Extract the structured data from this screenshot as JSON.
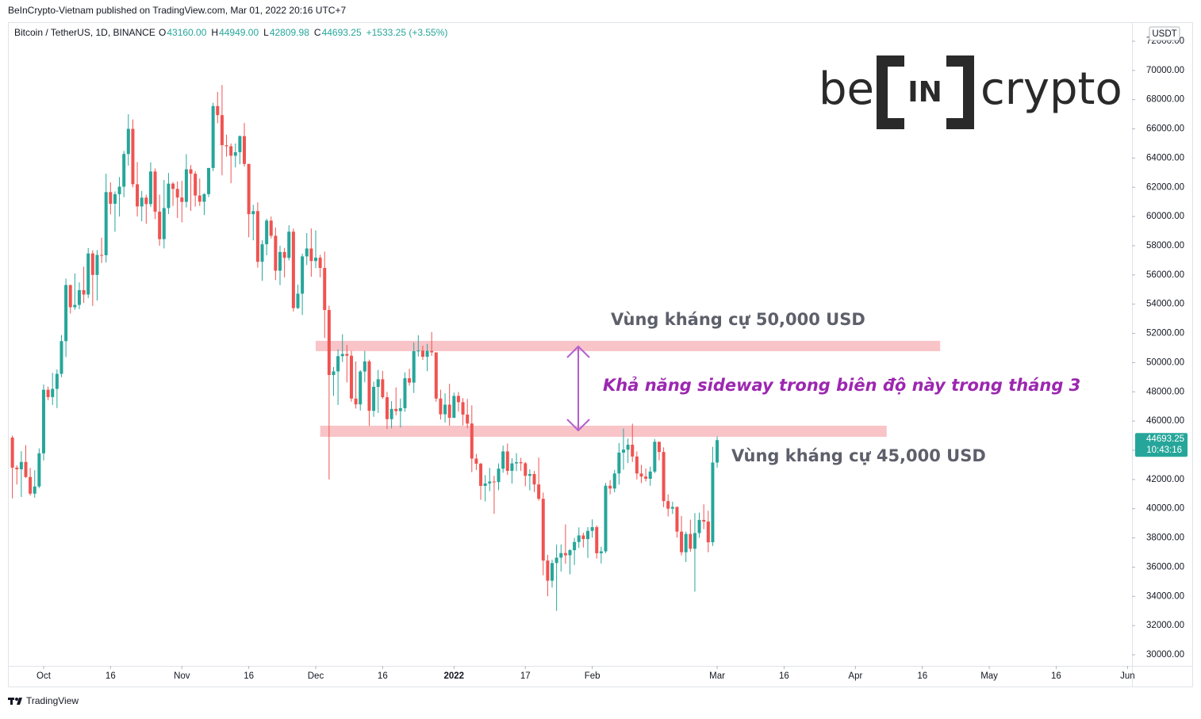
{
  "header": {
    "published": "BeInCrypto-Vietnam published on TradingView.com, Mar 01, 2022 20:16 UTC+7",
    "footer": "TradingView"
  },
  "logo": {
    "left": "be",
    "middle": "IN",
    "right": "crypto"
  },
  "chart_data": {
    "type": "candlestick",
    "symbol": "Bitcoin / TetherUS, 1D, BINANCE",
    "ohlc_legend": [
      {
        "key": "O",
        "value": "43160.00"
      },
      {
        "key": "H",
        "value": "44949.00"
      },
      {
        "key": "L",
        "value": "42809.98"
      },
      {
        "key": "C",
        "value": "44693.25"
      }
    ],
    "change": "+1533.25 (+3.55%)",
    "currency": "USDT",
    "up_color": "#26a69a",
    "down_color": "#ef5350",
    "grid": false,
    "x": [
      "2021-09-24",
      "2021-09-25",
      "2021-09-26",
      "2021-09-27",
      "2021-09-28",
      "2021-09-29",
      "2021-09-30",
      "2021-10-01",
      "2021-10-02",
      "2021-10-03",
      "2021-10-04",
      "2021-10-05",
      "2021-10-06",
      "2021-10-07",
      "2021-10-08",
      "2021-10-09",
      "2021-10-10",
      "2021-10-11",
      "2021-10-12",
      "2021-10-13",
      "2021-10-14",
      "2021-10-15",
      "2021-10-16",
      "2021-10-17",
      "2021-10-18",
      "2021-10-19",
      "2021-10-20",
      "2021-10-21",
      "2021-10-22",
      "2021-10-23",
      "2021-10-24",
      "2021-10-25",
      "2021-10-26",
      "2021-10-27",
      "2021-10-28",
      "2021-10-29",
      "2021-10-30",
      "2021-10-31",
      "2021-11-01",
      "2021-11-02",
      "2021-11-03",
      "2021-11-04",
      "2021-11-05",
      "2021-11-06",
      "2021-11-07",
      "2021-11-08",
      "2021-11-09",
      "2021-11-10",
      "2021-11-11",
      "2021-11-12",
      "2021-11-13",
      "2021-11-14",
      "2021-11-15",
      "2021-11-16",
      "2021-11-17",
      "2021-11-18",
      "2021-11-19",
      "2021-11-20",
      "2021-11-21",
      "2021-11-22",
      "2021-11-23",
      "2021-11-24",
      "2021-11-25",
      "2021-11-26",
      "2021-11-27",
      "2021-11-28",
      "2021-11-29",
      "2021-11-30",
      "2021-12-01",
      "2021-12-02",
      "2021-12-03",
      "2021-12-04",
      "2021-12-05",
      "2021-12-06",
      "2021-12-07",
      "2021-12-08",
      "2021-12-09",
      "2021-12-10",
      "2021-12-11",
      "2021-12-12",
      "2021-12-13",
      "2021-12-14",
      "2021-12-15",
      "2021-12-16",
      "2021-12-17",
      "2021-12-18",
      "2021-12-19",
      "2021-12-20",
      "2021-12-21",
      "2021-12-22",
      "2021-12-23",
      "2021-12-24",
      "2021-12-25",
      "2021-12-26",
      "2021-12-27",
      "2021-12-28",
      "2021-12-29",
      "2021-12-30",
      "2021-12-31",
      "2022-01-01",
      "2022-01-02",
      "2022-01-03",
      "2022-01-04",
      "2022-01-05",
      "2022-01-06",
      "2022-01-07",
      "2022-01-08",
      "2022-01-09",
      "2022-01-10",
      "2022-01-11",
      "2022-01-12",
      "2022-01-13",
      "2022-01-14",
      "2022-01-15",
      "2022-01-16",
      "2022-01-17",
      "2022-01-18",
      "2022-01-19",
      "2022-01-20",
      "2022-01-21",
      "2022-01-22",
      "2022-01-23",
      "2022-01-24",
      "2022-01-25",
      "2022-01-26",
      "2022-01-27",
      "2022-01-28",
      "2022-01-29",
      "2022-01-30",
      "2022-01-31",
      "2022-02-01",
      "2022-02-02",
      "2022-02-03",
      "2022-02-04",
      "2022-02-05",
      "2022-02-06",
      "2022-02-07",
      "2022-02-08",
      "2022-02-09",
      "2022-02-10",
      "2022-02-11",
      "2022-02-12",
      "2022-02-13",
      "2022-02-14",
      "2022-02-15",
      "2022-02-16",
      "2022-02-17",
      "2022-02-18",
      "2022-02-19",
      "2022-02-20",
      "2022-02-21",
      "2022-02-22",
      "2022-02-23",
      "2022-02-24",
      "2022-02-25",
      "2022-02-26",
      "2022-02-27",
      "2022-02-28",
      "2022-03-01"
    ],
    "open": [
      44870,
      42810,
      42700,
      43200,
      42170,
      41030,
      41520,
      43790,
      48140,
      47640,
      48200,
      49230,
      51470,
      55310,
      53790,
      53950,
      54960,
      54660,
      57470,
      56000,
      57370,
      57350,
      61670,
      60870,
      61530,
      62040,
      64280,
      66000,
      62210,
      60690,
      61290,
      60850,
      63080,
      60330,
      58450,
      60580,
      62250,
      61890,
      61300,
      61000,
      63230,
      62930,
      61440,
      61010,
      61530,
      63320,
      67560,
      66940,
      64880,
      64810,
      64160,
      64400,
      65500,
      63600,
      60160,
      60370,
      56900,
      58100,
      59720,
      58680,
      56290,
      57570,
      57170,
      58960,
      53730,
      54720,
      57270,
      57810,
      56950,
      57180,
      56480,
      53600,
      49150,
      49400,
      50440,
      50590,
      50470,
      47540,
      47140,
      49390,
      50080,
      46700,
      48340,
      48860,
      47630,
      46130,
      46830,
      46680,
      46880,
      48930,
      48630,
      50780,
      50820,
      50400,
      50800,
      50700,
      47540,
      46460,
      47120,
      46220,
      47720,
      47290,
      46440,
      45830,
      43430,
      43080,
      41560,
      41730,
      41860,
      41820,
      42740,
      43920,
      42590,
      43100,
      43180,
      43110,
      42250,
      42370,
      41660,
      40680,
      36450,
      35070,
      36280,
      36650,
      36960,
      36810,
      37160,
      37720,
      38170,
      37920,
      38480,
      38740,
      36950,
      37080,
      41570,
      41380,
      42410,
      43840,
      44040,
      44380,
      43570,
      42410,
      42200,
      42050,
      42540,
      44580,
      43880,
      40520,
      40000,
      40120,
      38430,
      37020,
      38270,
      37260,
      38330,
      39230,
      39120,
      37700,
      43160
    ],
    "high": [
      45000,
      42970,
      43940,
      44350,
      42790,
      42630,
      44130,
      48500,
      48360,
      49300,
      49530,
      51890,
      55750,
      55330,
      56100,
      55490,
      56560,
      57840,
      57680,
      57700,
      58550,
      62930,
      62340,
      61720,
      62700,
      64490,
      67000,
      66640,
      63730,
      61750,
      61490,
      63710,
      63290,
      61500,
      62500,
      62980,
      62360,
      62400,
      62440,
      64270,
      63520,
      63100,
      62600,
      61600,
      63330,
      67790,
      68530,
      69000,
      65600,
      65000,
      65000,
      65550,
      66400,
      63600,
      60800,
      60970,
      58370,
      59850,
      60000,
      59250,
      58000,
      57850,
      59400,
      59170,
      55330,
      57450,
      58870,
      59180,
      59050,
      57380,
      57600,
      53900,
      49700,
      50900,
      51940,
      51200,
      50800,
      50080,
      49480,
      50800,
      50200,
      48700,
      49500,
      49440,
      48000,
      47360,
      48300,
      47540,
      49330,
      49580,
      51380,
      51870,
      51160,
      51280,
      52090,
      50700,
      48140,
      47900,
      48550,
      47950,
      47990,
      47570,
      47510,
      47070,
      43750,
      43140,
      42300,
      42790,
      42250,
      43100,
      44320,
      44460,
      43450,
      43800,
      43480,
      43200,
      42690,
      42580,
      43500,
      41100,
      36840,
      36500,
      37550,
      37550,
      38920,
      37230,
      38000,
      38720,
      38360,
      38740,
      39270,
      38860,
      37390,
      41760,
      41950,
      42650,
      44500,
      45490,
      44800,
      45820,
      43920,
      43000,
      42760,
      42880,
      44770,
      44580,
      44200,
      40980,
      40480,
      40150,
      39500,
      38430,
      39250,
      39700,
      39730,
      40300,
      39860,
      44230,
      44949
    ],
    "low": [
      40700,
      41650,
      40800,
      42100,
      40900,
      40750,
      41410,
      43300,
      47430,
      47100,
      46890,
      49000,
      50380,
      53360,
      53620,
      53660,
      54080,
      54420,
      53880,
      54250,
      56820,
      56850,
      60150,
      58960,
      60000,
      61320,
      63480,
      62000,
      60000,
      59670,
      59500,
      60650,
      59820,
      58000,
      57820,
      60170,
      60720,
      59900,
      59600,
      60620,
      60380,
      60680,
      60720,
      60100,
      61330,
      63110,
      66380,
      62820,
      64100,
      62280,
      63360,
      63580,
      63420,
      58580,
      58370,
      56500,
      55600,
      57350,
      58500,
      55650,
      55300,
      55840,
      57000,
      53500,
      53670,
      53260,
      56680,
      55880,
      56460,
      55840,
      51680,
      42000,
      47730,
      47100,
      50040,
      48640,
      47320,
      46850,
      46720,
      48650,
      45670,
      46290,
      46550,
      47510,
      45450,
      45500,
      46400,
      45560,
      46630,
      48420,
      47920,
      50420,
      50180,
      49410,
      50460,
      47320,
      46100,
      45900,
      45680,
      46210,
      46650,
      45700,
      45500,
      42500,
      42650,
      40610,
      40500,
      41200,
      39650,
      41270,
      42460,
      42310,
      41720,
      42570,
      42590,
      41540,
      41250,
      41140,
      40550,
      35440,
      34010,
      34600,
      33000,
      35700,
      36230,
      35510,
      36150,
      37310,
      37350,
      36630,
      38020,
      36580,
      36250,
      36960,
      40990,
      41120,
      41650,
      42670,
      43120,
      43200,
      42000,
      41750,
      41870,
      41570,
      42430,
      43310,
      40100,
      39470,
      39640,
      38020,
      36800,
      36350,
      37040,
      34320,
      38010,
      38600,
      37020,
      37450,
      42809.98
    ],
    "close": [
      42810,
      42700,
      43200,
      42170,
      41030,
      41520,
      43790,
      48140,
      47640,
      48200,
      49230,
      51470,
      55310,
      53790,
      53950,
      54960,
      54660,
      57470,
      56000,
      57370,
      57350,
      61670,
      60870,
      61530,
      62040,
      64280,
      66000,
      62210,
      60690,
      61290,
      60850,
      63080,
      60330,
      58450,
      60580,
      62250,
      61890,
      61300,
      61000,
      63230,
      62930,
      61440,
      61010,
      61530,
      63320,
      67560,
      66940,
      64880,
      64810,
      64160,
      64400,
      65500,
      63600,
      60160,
      60370,
      56900,
      58100,
      59720,
      58680,
      56290,
      57570,
      57170,
      58960,
      53730,
      54720,
      57270,
      57810,
      56950,
      57180,
      56480,
      53600,
      49150,
      49400,
      50440,
      50590,
      50470,
      47540,
      47140,
      49390,
      50080,
      46700,
      48340,
      48860,
      47630,
      46130,
      46830,
      46680,
      46880,
      48930,
      48630,
      50780,
      50820,
      50400,
      50800,
      50700,
      47540,
      46460,
      47120,
      46220,
      47720,
      47290,
      46440,
      45830,
      43430,
      43080,
      41560,
      41730,
      41860,
      41820,
      42740,
      43920,
      42590,
      43100,
      43180,
      43110,
      42250,
      42370,
      41660,
      40680,
      36450,
      35070,
      36280,
      36650,
      36960,
      36810,
      37160,
      37720,
      38170,
      37920,
      38480,
      38740,
      36950,
      37080,
      41570,
      41380,
      42410,
      43840,
      44040,
      44380,
      43570,
      42410,
      42200,
      42050,
      42540,
      44580,
      43880,
      40520,
      40000,
      40120,
      38430,
      37020,
      38270,
      37260,
      38330,
      39230,
      39120,
      37700,
      43160,
      44693.25
    ],
    "xlim": [
      "2021-09-23",
      "2022-06-02"
    ],
    "xticks": [
      {
        "value": "2021-10-01",
        "label": "Oct"
      },
      {
        "value": "2021-10-16",
        "label": "16"
      },
      {
        "value": "2021-11-01",
        "label": "Nov"
      },
      {
        "value": "2021-11-16",
        "label": "16"
      },
      {
        "value": "2021-12-01",
        "label": "Dec"
      },
      {
        "value": "2021-12-16",
        "label": "16"
      },
      {
        "value": "2022-01-01",
        "label": "2022"
      },
      {
        "value": "2022-01-17",
        "label": "17"
      },
      {
        "value": "2022-02-01",
        "label": "Feb"
      },
      {
        "value": "2022-03-01",
        "label": "Mar"
      },
      {
        "value": "2022-03-16",
        "label": "16"
      },
      {
        "value": "2022-04-01",
        "label": "Apr"
      },
      {
        "value": "2022-04-16",
        "label": "16"
      },
      {
        "value": "2022-05-01",
        "label": "May"
      },
      {
        "value": "2022-05-16",
        "label": "16"
      },
      {
        "value": "2022-06-01",
        "label": "Jun"
      }
    ],
    "ylim": [
      29240,
      73300
    ],
    "yticks": [
      {
        "value": 30000,
        "label": "30000.00"
      },
      {
        "value": 32000,
        "label": "32000.00"
      },
      {
        "value": 34000,
        "label": "34000.00"
      },
      {
        "value": 36000,
        "label": "36000.00"
      },
      {
        "value": 38000,
        "label": "38000.00"
      },
      {
        "value": 40000,
        "label": "40000.00"
      },
      {
        "value": 42000,
        "label": "42000.00"
      },
      {
        "value": 44000,
        "label": "44000.00"
      },
      {
        "value": 46000,
        "label": "46000.00"
      },
      {
        "value": 48000,
        "label": "48000.00"
      },
      {
        "value": 50000,
        "label": "50000.00"
      },
      {
        "value": 52000,
        "label": "52000.00"
      },
      {
        "value": 54000,
        "label": "54000.00"
      },
      {
        "value": 56000,
        "label": "56000.00"
      },
      {
        "value": 58000,
        "label": "58000.00"
      },
      {
        "value": 60000,
        "label": "60000.00"
      },
      {
        "value": 62000,
        "label": "62000.00"
      },
      {
        "value": 64000,
        "label": "64000.00"
      },
      {
        "value": 66000,
        "label": "66000.00"
      },
      {
        "value": 68000,
        "label": "68000.00"
      },
      {
        "value": 70000,
        "label": "70000.00"
      },
      {
        "value": 72000,
        "label": "72000.00"
      }
    ],
    "price_label": {
      "value": 44693.25,
      "label": "44693.25",
      "countdown": "10:43:16"
    },
    "zones": [
      {
        "top": 51490,
        "bottom": 50780,
        "start": "2021-12-01",
        "end": "2022-04-20",
        "color": "#f8c4c8"
      },
      {
        "top": 45680,
        "bottom": 44920,
        "start": "2021-12-02",
        "end": "2022-04-08",
        "color": "#f8c4c8"
      }
    ],
    "annotations": [
      "Vùng kháng cự 50,000 USD",
      "Khả năng sideway trong biên độ này trong tháng 3",
      "Vùng kháng cự 45,000 USD"
    ]
  }
}
